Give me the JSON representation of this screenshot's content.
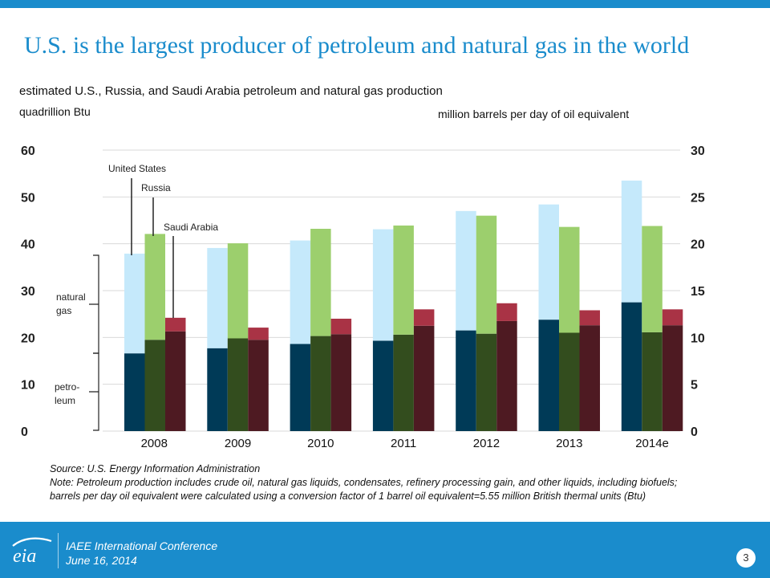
{
  "slide": {
    "title": "U.S. is the largest producer of petroleum and natural gas in the world",
    "subtitle": "estimated U.S., Russia, and Saudi Arabia petroleum and natural gas production",
    "left_axis_unit": "quadrillion Btu",
    "right_axis_unit": "million barrels per day of oil equivalent",
    "source": "Source: U.S. Energy Information Administration",
    "note": "Note: Petroleum production includes crude oil, natural gas liquids, condensates, refinery processing gain, and other liquids, including biofuels; barrels per day oil equivalent were calculated using a conversion factor of 1 barrel oil equivalent=5.55 million British thermal units (Btu)"
  },
  "footer": {
    "logo_text": "eia",
    "conference": "IAEE International Conference",
    "date": "June 16, 2014",
    "page_number": "3"
  },
  "chart_data": {
    "type": "bar",
    "stacked": true,
    "grouped": true,
    "categories": [
      "2008",
      "2009",
      "2010",
      "2011",
      "2012",
      "2013",
      "2014e"
    ],
    "left_axis": {
      "unit": "quadrillion Btu",
      "ylim": [
        0,
        60
      ],
      "ticks": [
        0,
        10,
        20,
        30,
        40,
        50,
        60
      ]
    },
    "right_axis": {
      "unit": "million barrels per day of oil equivalent",
      "ylim": [
        0,
        30
      ],
      "ticks": [
        0,
        5,
        10,
        15,
        20,
        25,
        30
      ]
    },
    "grid": true,
    "countries": [
      {
        "name": "United States",
        "colors": {
          "petroleum": "#003a57",
          "natural_gas": "#c5e9fb"
        },
        "petroleum": [
          16.6,
          17.7,
          18.6,
          19.3,
          21.5,
          23.8,
          27.5
        ],
        "natural_gas": [
          21.3,
          21.4,
          22.1,
          23.8,
          25.5,
          24.6,
          26.0
        ]
      },
      {
        "name": "Russia",
        "colors": {
          "petroleum": "#334d1e",
          "natural_gas": "#9ccf6d"
        },
        "petroleum": [
          19.5,
          19.8,
          20.3,
          20.6,
          20.8,
          21.0,
          21.1
        ],
        "natural_gas": [
          22.6,
          20.3,
          22.9,
          23.3,
          25.2,
          22.6,
          22.7
        ]
      },
      {
        "name": "Saudi Arabia",
        "colors": {
          "petroleum": "#4e1a22",
          "natural_gas": "#a93345"
        },
        "petroleum": [
          21.3,
          19.5,
          20.7,
          22.5,
          23.5,
          22.6,
          22.6
        ],
        "natural_gas": [
          2.9,
          2.6,
          3.3,
          3.5,
          3.8,
          3.2,
          3.4
        ]
      }
    ],
    "bracket_labels": {
      "natural_gas": "natural gas",
      "petroleum": "petro- leum"
    },
    "series_labels": [
      "United States",
      "Russia",
      "Saudi Arabia"
    ]
  }
}
